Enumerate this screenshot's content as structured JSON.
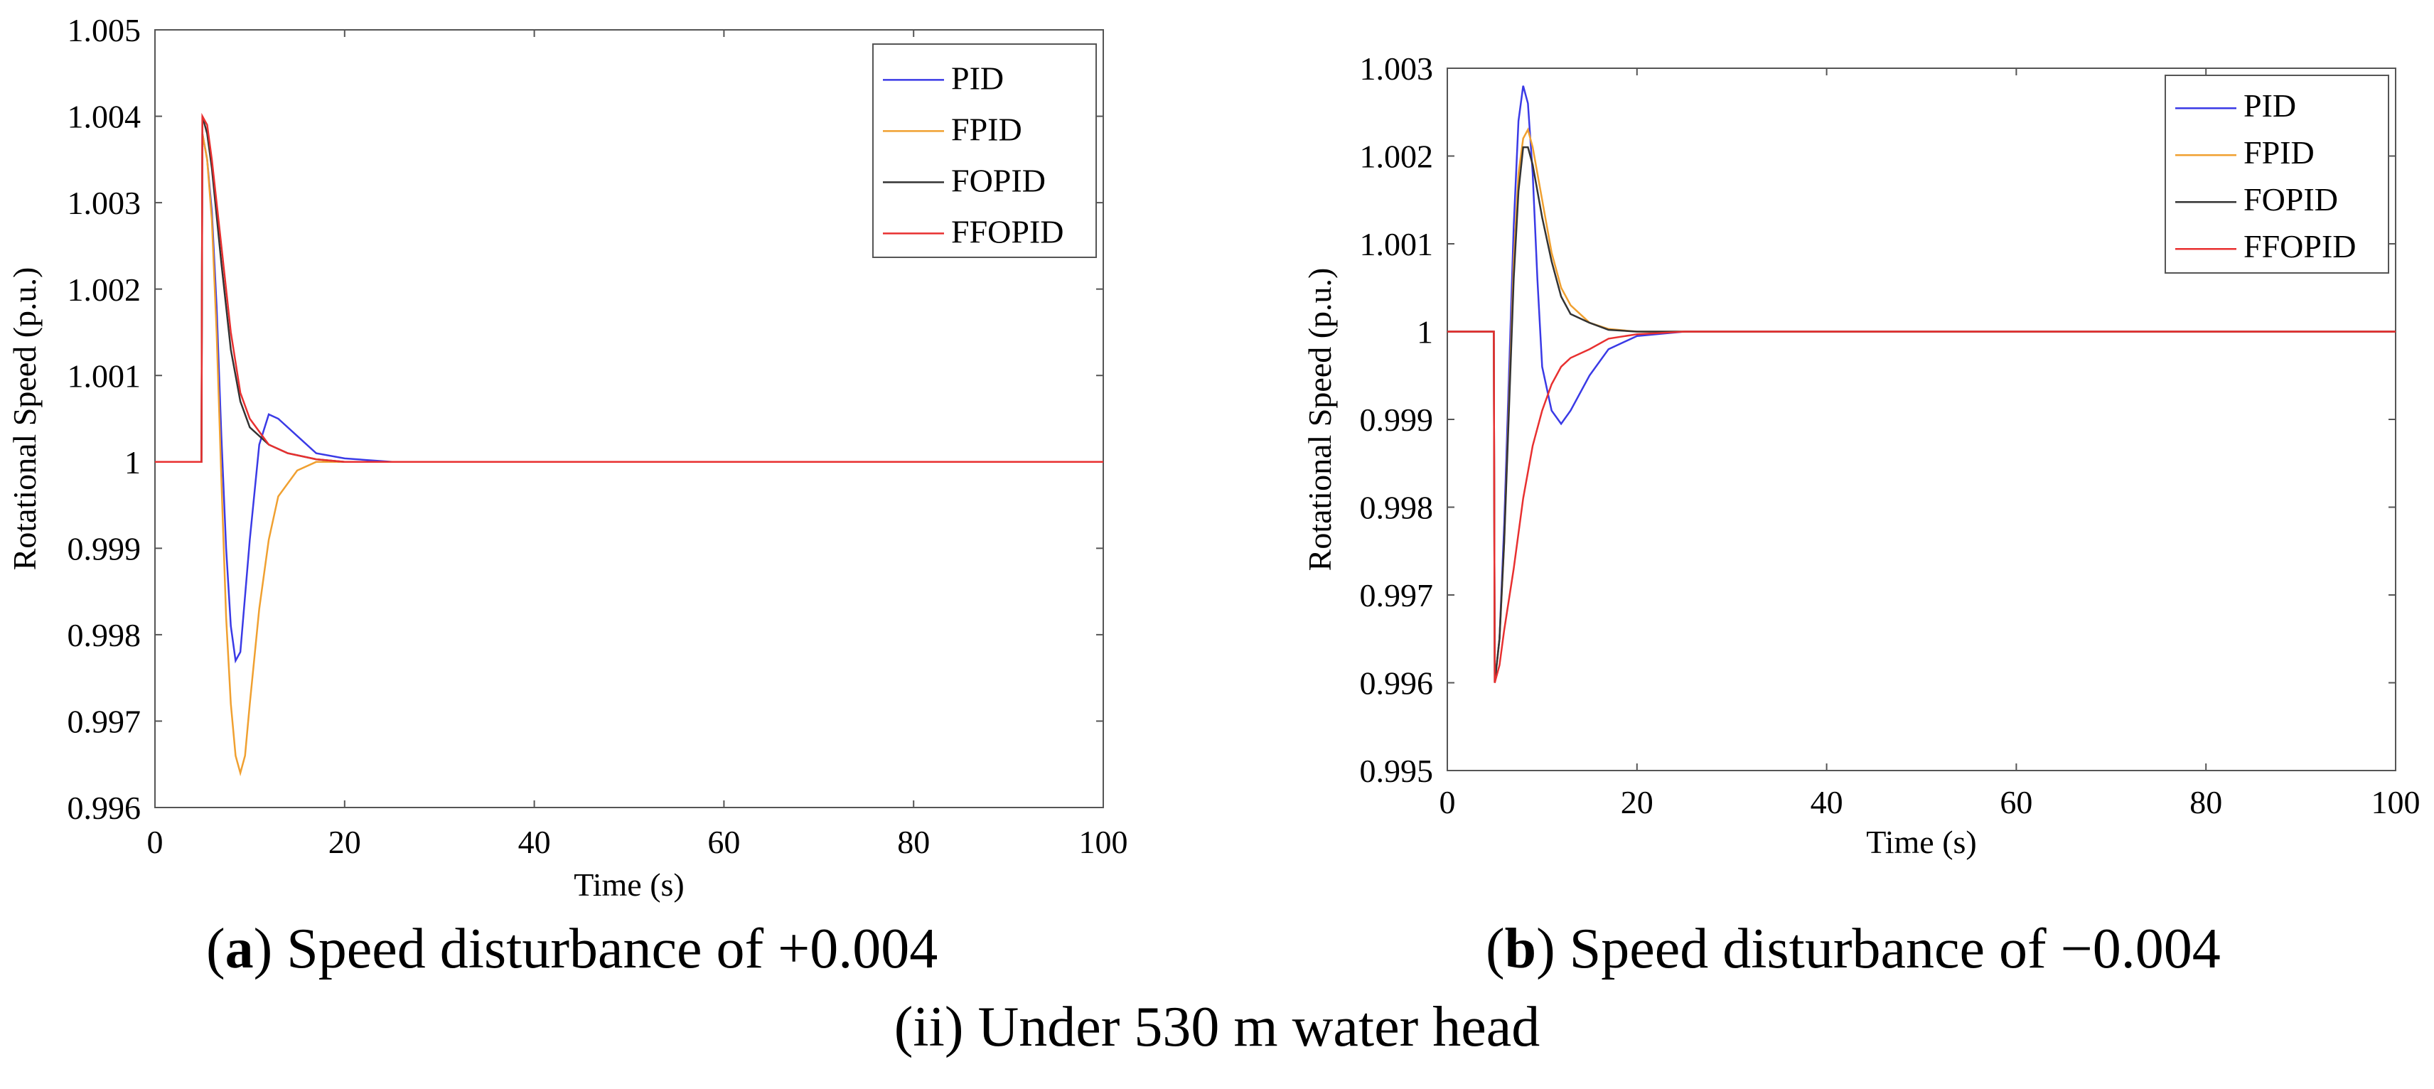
{
  "chart_data": [
    {
      "type": "line",
      "panel_label": "a",
      "caption": "Speed disturbance of +0.004",
      "xlabel": "Time (s)",
      "ylabel": "Rotational Speed (p.u.)",
      "xlim": [
        0,
        100
      ],
      "ylim": [
        0.996,
        1.005
      ],
      "xticks": [
        0,
        20,
        40,
        60,
        80,
        100
      ],
      "xtick_labels": [
        "0",
        "20",
        "40",
        "60",
        "80",
        "100"
      ],
      "yticks": [
        0.996,
        0.997,
        0.998,
        0.999,
        1.0,
        1.001,
        1.002,
        1.003,
        1.004,
        1.005
      ],
      "ytick_labels": [
        "0.996",
        "0.997",
        "0.998",
        "0.999",
        "1",
        "1.001",
        "1.002",
        "1.003",
        "1.004",
        "1.005"
      ],
      "legend_position": "top-right",
      "grid": false,
      "series": [
        {
          "name": "PID",
          "color": "#3a3ae6",
          "x": [
            0,
            4.9,
            5.0,
            5.5,
            6.0,
            6.5,
            7.0,
            7.5,
            8.0,
            8.5,
            9.0,
            10.0,
            11.0,
            12.0,
            13.0,
            15.0,
            17.0,
            20.0,
            25.0,
            30.0,
            40.0,
            60.0,
            80.0,
            100.0
          ],
          "y": [
            1.0,
            1.0,
            1.0038,
            1.0035,
            1.0029,
            1.0018,
            1.0003,
            0.999,
            0.9981,
            0.9977,
            0.9978,
            0.9991,
            1.0002,
            1.00055,
            1.0005,
            1.0003,
            1.0001,
            1.00004,
            1.0,
            1.0,
            1.0,
            1.0,
            1.0,
            1.0
          ]
        },
        {
          "name": "FPID",
          "color": "#f0a030",
          "x": [
            0,
            4.9,
            5.0,
            5.5,
            6.0,
            6.5,
            7.0,
            7.5,
            8.0,
            8.5,
            9.0,
            9.5,
            10.0,
            11.0,
            12.0,
            13.0,
            15.0,
            17.0,
            20.0,
            25.0,
            30.0,
            40.0,
            60.0,
            80.0,
            100.0
          ],
          "y": [
            1.0,
            1.0,
            1.0038,
            1.0035,
            1.0028,
            1.0015,
            0.9998,
            0.9982,
            0.9972,
            0.9966,
            0.9964,
            0.9966,
            0.9972,
            0.9983,
            0.9991,
            0.9996,
            0.9999,
            1.0,
            1.0,
            1.0,
            1.0,
            1.0,
            1.0,
            1.0,
            1.0
          ]
        },
        {
          "name": "FOPID",
          "color": "#333333",
          "x": [
            0,
            4.9,
            5.0,
            5.5,
            6.0,
            7.0,
            8.0,
            9.0,
            10.0,
            12.0,
            14.0,
            17.0,
            20.0,
            25.0,
            30.0,
            40.0,
            60.0,
            80.0,
            100.0
          ],
          "y": [
            1.0,
            1.0,
            1.004,
            1.0038,
            1.0034,
            1.0023,
            1.0013,
            1.0007,
            1.0004,
            1.0002,
            1.0001,
            1.00003,
            1.0,
            1.0,
            1.0,
            1.0,
            1.0,
            1.0,
            1.0
          ]
        },
        {
          "name": "FFOPID",
          "color": "#e83030",
          "x": [
            0,
            4.9,
            5.0,
            5.5,
            6.0,
            7.0,
            8.0,
            9.0,
            10.0,
            12.0,
            14.0,
            17.0,
            20.0,
            25.0,
            30.0,
            40.0,
            60.0,
            80.0,
            100.0
          ],
          "y": [
            1.0,
            1.0,
            1.004,
            1.0039,
            1.0035,
            1.0025,
            1.0015,
            1.0008,
            1.0005,
            1.0002,
            1.0001,
            1.00003,
            1.0,
            1.0,
            1.0,
            1.0,
            1.0,
            1.0,
            1.0
          ]
        }
      ]
    },
    {
      "type": "line",
      "panel_label": "b",
      "caption": "Speed disturbance of −0.004",
      "xlabel": "Time (s)",
      "ylabel": "Rotational Speed (p.u.)",
      "xlim": [
        0,
        100
      ],
      "ylim": [
        0.995,
        1.003
      ],
      "xticks": [
        0,
        20,
        40,
        60,
        80,
        100
      ],
      "xtick_labels": [
        "0",
        "20",
        "40",
        "60",
        "80",
        "100"
      ],
      "yticks": [
        0.995,
        0.996,
        0.997,
        0.998,
        0.999,
        1.0,
        1.001,
        1.002,
        1.003
      ],
      "ytick_labels": [
        "0.995",
        "0.996",
        "0.997",
        "0.998",
        "0.999",
        "1",
        "1.001",
        "1.002",
        "1.003"
      ],
      "legend_position": "top-right",
      "grid": false,
      "series": [
        {
          "name": "PID",
          "color": "#3a3ae6",
          "x": [
            0,
            4.9,
            5.0,
            5.5,
            6.0,
            6.5,
            7.0,
            7.5,
            8.0,
            8.5,
            9.0,
            9.5,
            10.0,
            11.0,
            12.0,
            13.0,
            15.0,
            17.0,
            20.0,
            25.0,
            30.0,
            40.0,
            60.0,
            80.0,
            100.0
          ],
          "y": [
            1.0,
            1.0,
            0.996,
            0.9965,
            0.9978,
            0.9995,
            1.0012,
            1.0024,
            1.0028,
            1.0026,
            1.0018,
            1.0006,
            0.9996,
            0.9991,
            0.99895,
            0.9991,
            0.9995,
            0.9998,
            0.99995,
            1.0,
            1.0,
            1.0,
            1.0,
            1.0,
            1.0
          ]
        },
        {
          "name": "FPID",
          "color": "#f0a030",
          "x": [
            0,
            4.9,
            5.0,
            5.5,
            6.0,
            6.5,
            7.0,
            7.5,
            8.0,
            8.5,
            9.0,
            10.0,
            11.0,
            12.0,
            13.0,
            15.0,
            17.0,
            20.0,
            25.0,
            30.0,
            40.0,
            60.0,
            80.0,
            100.0
          ],
          "y": [
            1.0,
            1.0,
            0.996,
            0.9965,
            0.9976,
            0.9992,
            1.0008,
            1.0018,
            1.0022,
            1.0023,
            1.0021,
            1.0015,
            1.0009,
            1.0005,
            1.0003,
            1.0001,
            1.00003,
            1.0,
            1.0,
            1.0,
            1.0,
            1.0,
            1.0,
            1.0
          ]
        },
        {
          "name": "FOPID",
          "color": "#333333",
          "x": [
            0,
            4.9,
            5.0,
            5.5,
            6.0,
            6.5,
            7.0,
            7.5,
            8.0,
            8.5,
            9.0,
            10.0,
            11.0,
            12.0,
            13.0,
            15.0,
            17.0,
            20.0,
            25.0,
            30.0,
            40.0,
            60.0,
            80.0,
            100.0
          ],
          "y": [
            1.0,
            1.0,
            0.996,
            0.9965,
            0.9976,
            0.9991,
            1.0006,
            1.0016,
            1.0021,
            1.0021,
            1.0019,
            1.0013,
            1.0008,
            1.0004,
            1.0002,
            1.0001,
            1.00002,
            1.0,
            1.0,
            1.0,
            1.0,
            1.0,
            1.0,
            1.0
          ]
        },
        {
          "name": "FFOPID",
          "color": "#e83030",
          "x": [
            0,
            4.9,
            5.0,
            5.5,
            6.0,
            7.0,
            8.0,
            9.0,
            10.0,
            11.0,
            12.0,
            13.0,
            15.0,
            17.0,
            20.0,
            25.0,
            30.0,
            40.0,
            60.0,
            80.0,
            100.0
          ],
          "y": [
            1.0,
            1.0,
            0.996,
            0.9962,
            0.9966,
            0.9973,
            0.9981,
            0.9987,
            0.9991,
            0.9994,
            0.9996,
            0.9997,
            0.9998,
            0.99992,
            0.99997,
            1.0,
            1.0,
            1.0,
            1.0,
            1.0,
            1.0
          ]
        }
      ]
    }
  ],
  "captions": {
    "a_label": "a",
    "a_text": "Speed disturbance of +0.004",
    "b_label": "b",
    "b_text": "Speed disturbance of −0.004",
    "sub": "(ii) Under 530 m water head"
  }
}
